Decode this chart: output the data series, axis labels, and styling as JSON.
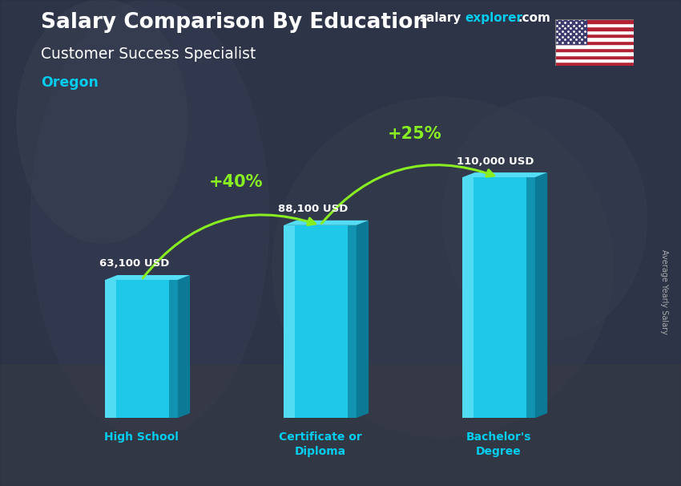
{
  "title_main": "Salary Comparison By Education",
  "title_sub": "Customer Success Specialist",
  "title_location": "Oregon",
  "watermark_white": "salary",
  "watermark_cyan": "explorer",
  "watermark_dot": ".com",
  "categories": [
    "High School",
    "Certificate or\nDiploma",
    "Bachelor's\nDegree"
  ],
  "values": [
    63100,
    88100,
    110000
  ],
  "value_labels": [
    "63,100 USD",
    "88,100 USD",
    "110,000 USD"
  ],
  "pct_labels": [
    "+40%",
    "+25%"
  ],
  "bar_color_face": "#1ec8e8",
  "bar_color_dark": "#0d8faa",
  "bar_color_top": "#55ddf5",
  "bar_color_side": "#0a7a96",
  "bar_color_highlight": "#7eeeff",
  "bg_overlay": "#2a3347",
  "bg_overlay_alpha": 0.72,
  "text_white": "#ffffff",
  "text_cyan": "#00ccee",
  "text_green": "#88ee22",
  "ylabel_rotated": "Average Yearly Salary",
  "arrow_color": "#88ee22"
}
